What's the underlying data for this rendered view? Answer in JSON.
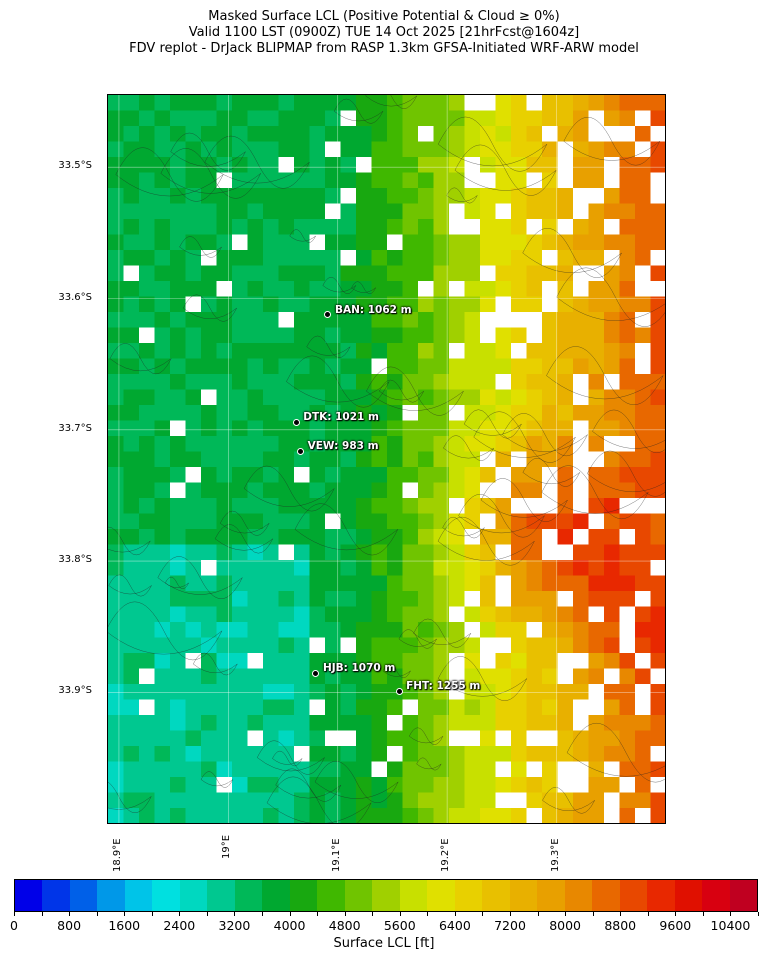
{
  "title": {
    "line1": "Masked Surface LCL (Positive Potential & Cloud ≥ 0%)",
    "line2": "Valid 1100 LST (0900Z) TUE 14 Oct 2025 [21hrFcst@1604z]",
    "line3": "FDV replot - DrJack BLIPMAP from RASP 1.3km GFSA-Initiated WRF-ARW model"
  },
  "map": {
    "lat_labels": [
      "33.5°S",
      "33.6°S",
      "33.7°S",
      "33.8°S",
      "33.9°S"
    ],
    "lat_values": [
      33.5,
      33.6,
      33.7,
      33.8,
      33.9
    ],
    "lon_labels": [
      "18.9°E",
      "19°E",
      "19.1°E",
      "19.2°E",
      "19.3°E"
    ],
    "lon_values": [
      18.9,
      19.0,
      19.1,
      19.2,
      19.3
    ],
    "extent": {
      "lon_min": 18.89,
      "lon_max": 19.401,
      "lat_min": 33.445,
      "lat_max": 34.001
    },
    "stations": [
      {
        "label": "BAN: 1062 m",
        "lon": 19.092,
        "lat": 33.613
      },
      {
        "label": "DTK: 1021 m",
        "lon": 19.063,
        "lat": 33.695
      },
      {
        "label": "VEW: 983 m",
        "lon": 19.067,
        "lat": 33.717
      },
      {
        "label": "HJB: 1070 m",
        "lon": 19.081,
        "lat": 33.886
      },
      {
        "label": "FHT: 1255 m",
        "lon": 19.157,
        "lat": 33.9
      }
    ]
  },
  "colorbar": {
    "label": "Surface LCL [ft]",
    "range": [
      0,
      10800
    ],
    "ticks": [
      "0",
      "800",
      "1600",
      "2400",
      "3200",
      "4000",
      "4800",
      "5600",
      "6400",
      "7200",
      "8000",
      "8800",
      "9600",
      "10400"
    ],
    "colors": [
      "#0000e8",
      "#0035e8",
      "#0060e8",
      "#0098e8",
      "#00c4e8",
      "#00e0e0",
      "#00d8c0",
      "#00c890",
      "#00b858",
      "#00a830",
      "#18a810",
      "#40b800",
      "#70c400",
      "#a0d000",
      "#c8e000",
      "#e0e000",
      "#e8d000",
      "#e8c000",
      "#e8b000",
      "#e8a000",
      "#e88800",
      "#e86800",
      "#e84800",
      "#e82800",
      "#e01000",
      "#d80010",
      "#c00020"
    ]
  }
}
